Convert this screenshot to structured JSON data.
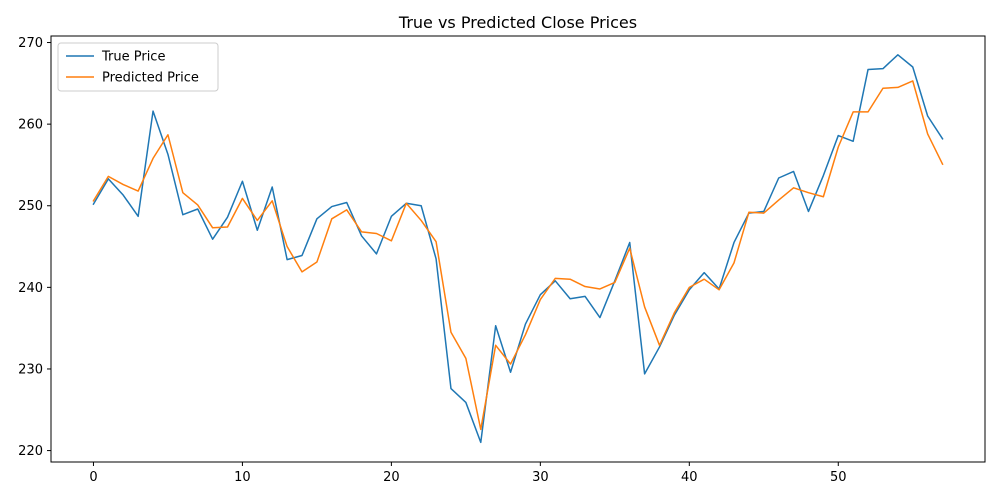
{
  "chart_data": {
    "type": "line",
    "title": "True vs Predicted Close Prices",
    "xlabel": "",
    "ylabel": "",
    "xlim": [
      -2.85,
      59.85
    ],
    "ylim": [
      218.6,
      270.8
    ],
    "x_ticks": [
      0,
      10,
      20,
      30,
      40,
      50
    ],
    "y_ticks": [
      220,
      230,
      240,
      250,
      260,
      270
    ],
    "grid": false,
    "legend_position": "top-left",
    "x": [
      0,
      1,
      2,
      3,
      4,
      5,
      6,
      7,
      8,
      9,
      10,
      11,
      12,
      13,
      14,
      15,
      16,
      17,
      18,
      19,
      20,
      21,
      22,
      23,
      24,
      25,
      26,
      27,
      28,
      29,
      30,
      31,
      32,
      33,
      34,
      35,
      36,
      37,
      38,
      39,
      40,
      41,
      42,
      43,
      44,
      45,
      46,
      47,
      48,
      49,
      50,
      51,
      52,
      53,
      54,
      55,
      56,
      57
    ],
    "series": [
      {
        "name": "True Price",
        "color": "#1f77b4",
        "values": [
          250.2,
          253.3,
          251.3,
          248.7,
          261.6,
          256.3,
          248.9,
          249.6,
          245.9,
          248.6,
          253.0,
          247.0,
          252.3,
          243.4,
          243.9,
          248.4,
          249.9,
          250.4,
          246.3,
          244.1,
          248.7,
          250.3,
          250.0,
          243.5,
          227.6,
          225.9,
          221.0,
          235.3,
          229.6,
          235.5,
          239.1,
          240.8,
          238.6,
          238.9,
          236.3,
          240.8,
          245.5,
          229.4,
          232.7,
          236.6,
          239.7,
          241.8,
          239.8,
          245.5,
          249.1,
          249.3,
          253.4,
          254.2,
          249.3,
          253.7,
          258.6,
          257.9,
          266.7,
          266.8,
          268.5,
          267.0,
          261.0,
          258.2
        ]
      },
      {
        "name": "Predicted Price",
        "color": "#ff7f0e",
        "values": [
          250.6,
          253.6,
          252.6,
          251.8,
          255.8,
          258.7,
          251.6,
          250.1,
          247.3,
          247.4,
          250.9,
          248.2,
          250.6,
          245.0,
          241.9,
          243.1,
          248.4,
          249.5,
          246.8,
          246.6,
          245.7,
          250.3,
          248.2,
          245.6,
          234.5,
          231.3,
          222.6,
          232.9,
          230.6,
          234.2,
          238.5,
          241.1,
          241.0,
          240.1,
          239.8,
          240.6,
          244.8,
          237.6,
          232.9,
          236.9,
          240.0,
          241.0,
          239.7,
          243.0,
          249.2,
          249.1,
          250.7,
          252.2,
          251.6,
          251.1,
          257.2,
          261.5,
          261.5,
          264.4,
          264.5,
          265.3,
          258.8,
          255.1
        ]
      }
    ]
  }
}
